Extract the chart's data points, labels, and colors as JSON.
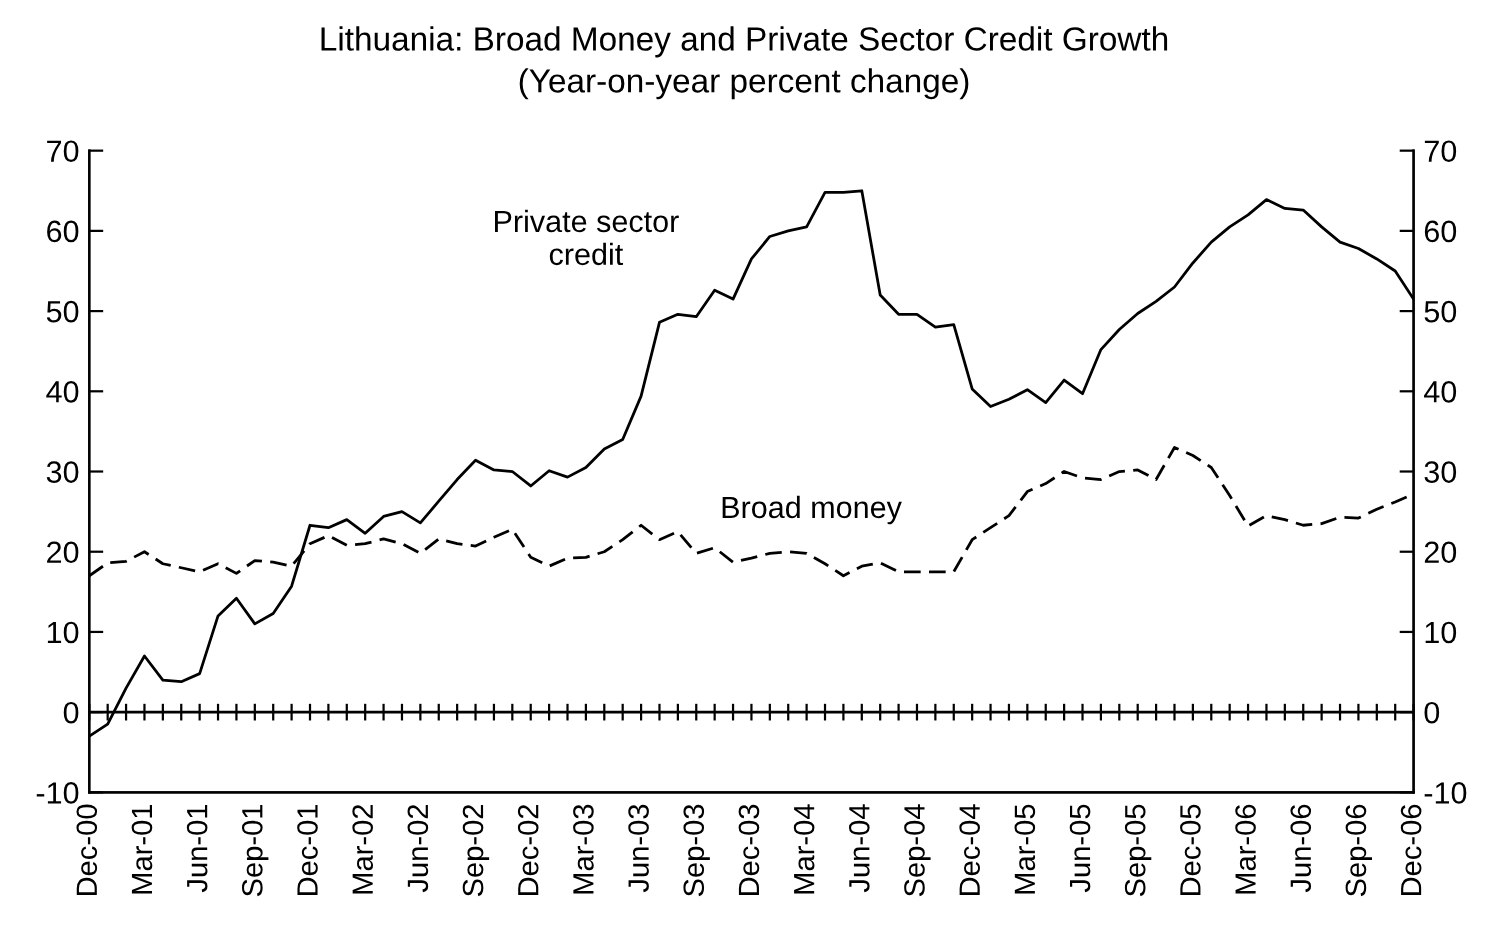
{
  "chart_data": {
    "type": "line",
    "title": "Lithuania: Broad Money and Private Sector Credit Growth",
    "subtitle": "(Year-on-year percent change)",
    "categories": [
      "Dec-00",
      null,
      null,
      "Mar-01",
      null,
      null,
      "Jun-01",
      null,
      null,
      "Sep-01",
      null,
      null,
      "Dec-01",
      null,
      null,
      "Mar-02",
      null,
      null,
      "Jun-02",
      null,
      null,
      "Sep-02",
      null,
      null,
      "Dec-02",
      null,
      null,
      "Mar-03",
      null,
      null,
      "Jun-03",
      null,
      null,
      "Sep-03",
      null,
      null,
      "Dec-03",
      null,
      null,
      "Mar-04",
      null,
      null,
      "Jun-04",
      null,
      null,
      "Sep-04",
      null,
      null,
      "Dec-04",
      null,
      null,
      "Mar-05",
      null,
      null,
      "Jun-05",
      null,
      null,
      "Sep-05",
      null,
      null,
      "Dec-05",
      null,
      null,
      "Mar-06",
      null,
      null,
      "Jun-06",
      null,
      null,
      "Sep-06",
      null,
      null,
      "Dec-06"
    ],
    "series": [
      {
        "name": "Private sector\ncredit",
        "color": "#000000",
        "line_style": "solid",
        "values": [
          -3,
          -1.5,
          3,
          7,
          4,
          3.8,
          4.8,
          12,
          14.2,
          11,
          12.3,
          15.7,
          23.3,
          23,
          24,
          22.3,
          24.4,
          25,
          23.6,
          26.3,
          29,
          31.4,
          30.2,
          30,
          28.2,
          30.1,
          29.3,
          30.5,
          32.8,
          34,
          39.4,
          48.6,
          49.6,
          49.3,
          52.6,
          51.5,
          56.5,
          59.3,
          60,
          60.5,
          64.8,
          64.8,
          65,
          52,
          49.6,
          49.6,
          48,
          48.3,
          40.3,
          38.1,
          39,
          40.2,
          38.6,
          41.4,
          39.7,
          45.2,
          47.7,
          49.7,
          51.2,
          53,
          56,
          58.6,
          60.5,
          62,
          63.9,
          62.8,
          62.6,
          60.5,
          58.6,
          57.8,
          56.5,
          55,
          51.5
        ]
      },
      {
        "name": "Broad money",
        "color": "#000000",
        "line_style": "dashed",
        "values": [
          17,
          18.6,
          18.8,
          20,
          18.5,
          18,
          17.5,
          18.5,
          17.3,
          18.9,
          18.7,
          18.2,
          21,
          22,
          20.8,
          21,
          21.6,
          21,
          19.8,
          21.6,
          21,
          20.7,
          21.8,
          22.8,
          19.3,
          18.2,
          19.2,
          19.3,
          20,
          21.5,
          23.3,
          21.5,
          22.5,
          19.8,
          20.5,
          18.7,
          19.2,
          19.8,
          20,
          19.8,
          18.5,
          17,
          18.2,
          18.6,
          17.5,
          17.5,
          17.5,
          17.5,
          21.5,
          23,
          24.5,
          27.5,
          28.5,
          30,
          29.2,
          29,
          30,
          30.2,
          29,
          33,
          32,
          30.5,
          27,
          23.2,
          24.5,
          24,
          23.3,
          23.5,
          24.3,
          24.2,
          25.3,
          26.2,
          27.2
        ]
      }
    ],
    "ref_lines": [
      {
        "axis": "y",
        "value": 0,
        "color": "#000000"
      }
    ],
    "ylim": [
      -10,
      70
    ],
    "yticks": [
      -10,
      0,
      10,
      20,
      30,
      40,
      50,
      60,
      70
    ],
    "y2lim": [
      -10,
      70
    ],
    "y2ticks": [
      -10,
      0,
      10,
      20,
      30,
      40,
      50,
      60,
      70
    ],
    "grid": false,
    "legend": false,
    "marker": "none"
  }
}
